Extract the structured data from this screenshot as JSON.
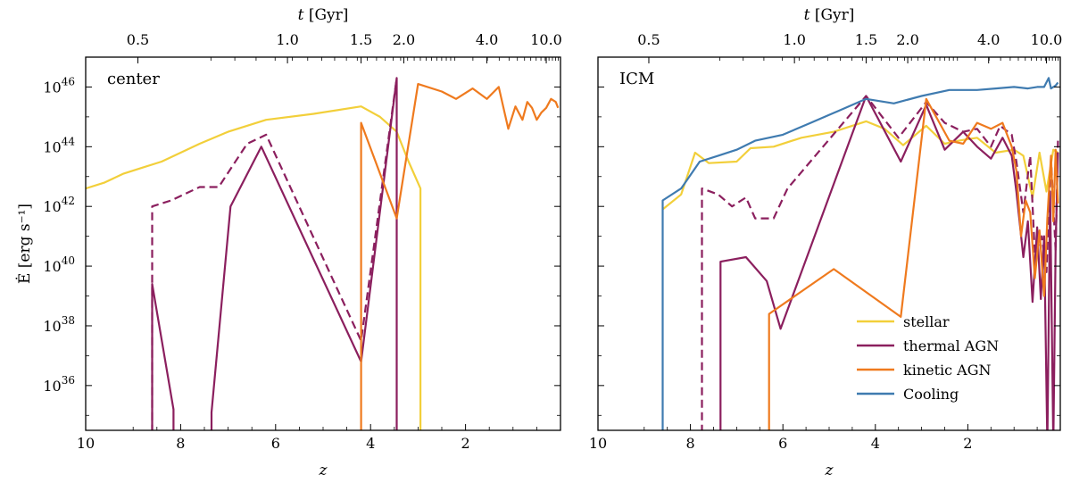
{
  "chart_data": {
    "type": "line",
    "x_axis": {
      "label": "z",
      "ticks": [
        10,
        8,
        6,
        4,
        2
      ],
      "range": [
        10,
        0
      ]
    },
    "top_axis": {
      "label_italic": "t",
      "label_unit": "[Gyr]",
      "ticks": [
        "0.5",
        "1.0",
        "1.5",
        "2.0",
        "4.0",
        "10.0"
      ],
      "tick_z": [
        8.9,
        5.75,
        4.2,
        3.3,
        1.55,
        0.3
      ]
    },
    "y_axis": {
      "label": "Ė [erg s⁻¹]",
      "scale": "log",
      "range_log10": [
        34.5,
        47.0
      ],
      "ticks": [
        {
          "base": "10",
          "exp": "46",
          "log": 46
        },
        {
          "base": "10",
          "exp": "44",
          "log": 44
        },
        {
          "base": "10",
          "exp": "42",
          "log": 42
        },
        {
          "base": "10",
          "exp": "40",
          "log": 40
        },
        {
          "base": "10",
          "exp": "38",
          "log": 38
        },
        {
          "base": "10",
          "exp": "36",
          "log": 36
        }
      ]
    },
    "colors": {
      "stellar": "#f2cf3a",
      "thermal": "#8b1f5e",
      "kinetic": "#ef7a1e",
      "cooling": "#3f7bb0"
    },
    "legend": [
      {
        "key": "stellar",
        "label": "stellar"
      },
      {
        "key": "thermal",
        "label": "thermal AGN"
      },
      {
        "key": "kinetic",
        "label": "kinetic AGN"
      },
      {
        "key": "cooling",
        "label": "Cooling"
      }
    ],
    "panels": [
      {
        "label": "center",
        "series": [
          {
            "key": "stellar",
            "dash": false,
            "points": [
              [
                10,
                42.6
              ],
              [
                9.6,
                42.8
              ],
              [
                9.2,
                43.1
              ],
              [
                8.8,
                43.3
              ],
              [
                8.4,
                43.5
              ],
              [
                8,
                43.8
              ],
              [
                7.6,
                44.1
              ],
              [
                7.0,
                44.5
              ],
              [
                6.2,
                44.9
              ],
              [
                5.2,
                45.1
              ],
              [
                4.2,
                45.35
              ],
              [
                3.8,
                45.0
              ],
              [
                3.45,
                44.5
              ],
              [
                3.2,
                43.5
              ],
              [
                2.95,
                42.6
              ],
              [
                2.95,
                34.0
              ]
            ]
          },
          {
            "key": "thermal",
            "dash": true,
            "points": [
              [
                8.6,
                34.0
              ],
              [
                8.6,
                39.4
              ],
              [
                8.6,
                42.0
              ],
              [
                8.2,
                42.2
              ],
              [
                7.6,
                42.65
              ],
              [
                7.2,
                42.65
              ],
              [
                6.6,
                44.1
              ],
              [
                6.2,
                44.4
              ],
              [
                4.2,
                37.5
              ],
              [
                3.45,
                46.3
              ]
            ]
          },
          {
            "key": "thermal",
            "dash": false,
            "points": [
              [
                8.6,
                34.0
              ],
              [
                8.6,
                39.4
              ],
              [
                8.15,
                35.2
              ],
              [
                8.15,
                34.0
              ]
            ]
          },
          {
            "key": "thermal",
            "dash": false,
            "points": [
              [
                7.35,
                34.0
              ],
              [
                7.35,
                35.1
              ],
              [
                6.95,
                42.0
              ],
              [
                6.3,
                44.0
              ],
              [
                4.2,
                36.8
              ],
              [
                3.45,
                46.3
              ],
              [
                3.45,
                34.0
              ]
            ]
          },
          {
            "key": "kinetic",
            "dash": false,
            "points": [
              [
                4.2,
                34.0
              ],
              [
                4.2,
                44.8
              ],
              [
                3.45,
                41.6
              ],
              [
                3.0,
                46.1
              ],
              [
                2.5,
                45.85
              ],
              [
                2.2,
                45.6
              ],
              [
                1.85,
                45.95
              ],
              [
                1.55,
                45.6
              ],
              [
                1.3,
                46.0
              ],
              [
                1.1,
                44.6
              ],
              [
                0.95,
                45.35
              ],
              [
                0.8,
                44.9
              ],
              [
                0.7,
                45.5
              ],
              [
                0.6,
                45.3
              ],
              [
                0.5,
                44.9
              ],
              [
                0.4,
                45.15
              ],
              [
                0.3,
                45.3
              ],
              [
                0.2,
                45.6
              ],
              [
                0.1,
                45.5
              ],
              [
                0.05,
                45.3
              ]
            ]
          }
        ]
      },
      {
        "label": "ICM",
        "show_legend": true,
        "series": [
          {
            "key": "stellar",
            "dash": false,
            "points": [
              [
                8.6,
                41.9
              ],
              [
                8.2,
                42.4
              ],
              [
                7.9,
                43.8
              ],
              [
                7.6,
                43.45
              ],
              [
                7.0,
                43.5
              ],
              [
                6.7,
                43.95
              ],
              [
                6.2,
                44.0
              ],
              [
                5.6,
                44.3
              ],
              [
                4.9,
                44.5
              ],
              [
                4.2,
                44.85
              ],
              [
                3.8,
                44.6
              ],
              [
                3.4,
                44.05
              ],
              [
                2.9,
                44.7
              ],
              [
                2.5,
                44.1
              ],
              [
                2.2,
                44.2
              ],
              [
                1.8,
                44.3
              ],
              [
                1.4,
                43.8
              ],
              [
                1.0,
                43.9
              ],
              [
                0.8,
                43.7
              ],
              [
                0.6,
                42.3
              ],
              [
                0.45,
                43.8
              ],
              [
                0.3,
                42.5
              ],
              [
                0.15,
                43.9
              ],
              [
                0.05,
                43.8
              ]
            ]
          },
          {
            "key": "thermal",
            "dash": true,
            "points": [
              [
                7.75,
                34.0
              ],
              [
                7.75,
                42.6
              ],
              [
                7.4,
                42.4
              ],
              [
                7.1,
                42.0
              ],
              [
                6.8,
                42.3
              ],
              [
                6.6,
                41.6
              ],
              [
                6.2,
                41.6
              ],
              [
                5.9,
                42.6
              ],
              [
                4.2,
                45.7
              ],
              [
                3.5,
                44.3
              ],
              [
                2.9,
                45.5
              ],
              [
                2.5,
                44.8
              ],
              [
                2.1,
                44.5
              ],
              [
                1.8,
                44.6
              ],
              [
                1.5,
                44.0
              ],
              [
                1.3,
                44.7
              ],
              [
                1.05,
                44.4
              ],
              [
                0.95,
                43.5
              ],
              [
                0.8,
                41.8
              ],
              [
                0.65,
                43.7
              ],
              [
                0.55,
                40.4
              ],
              [
                0.4,
                41.0
              ],
              [
                0.3,
                39.8
              ],
              [
                0.2,
                43.6
              ],
              [
                0.1,
                40.5
              ],
              [
                0.05,
                44.2
              ]
            ]
          },
          {
            "key": "thermal",
            "dash": false,
            "points": [
              [
                7.35,
                34.0
              ],
              [
                7.35,
                40.15
              ],
              [
                6.8,
                40.3
              ],
              [
                6.35,
                39.5
              ],
              [
                6.05,
                37.9
              ],
              [
                4.2,
                45.7
              ],
              [
                3.45,
                43.5
              ],
              [
                2.9,
                45.4
              ],
              [
                2.5,
                43.9
              ],
              [
                2.1,
                44.5
              ],
              [
                1.8,
                44.0
              ],
              [
                1.5,
                43.6
              ],
              [
                1.25,
                44.3
              ],
              [
                1.05,
                43.7
              ],
              [
                0.95,
                42.5
              ],
              [
                0.8,
                40.3
              ],
              [
                0.7,
                41.5
              ],
              [
                0.6,
                38.8
              ],
              [
                0.5,
                41.3
              ],
              [
                0.42,
                38.9
              ],
              [
                0.35,
                41.0
              ],
              [
                0.28,
                34.0
              ],
              [
                0.22,
                42.5
              ],
              [
                0.15,
                34.0
              ],
              [
                0.1,
                40.7
              ],
              [
                0.05,
                43.8
              ]
            ]
          },
          {
            "key": "kinetic",
            "dash": false,
            "points": [
              [
                6.3,
                34.0
              ],
              [
                6.3,
                38.4
              ],
              [
                4.9,
                39.9
              ],
              [
                3.45,
                38.3
              ],
              [
                2.9,
                45.6
              ],
              [
                2.4,
                44.2
              ],
              [
                2.1,
                44.1
              ],
              [
                1.8,
                44.8
              ],
              [
                1.5,
                44.6
              ],
              [
                1.25,
                44.8
              ],
              [
                1.05,
                44.0
              ],
              [
                0.95,
                43.2
              ],
              [
                0.85,
                41.0
              ],
              [
                0.75,
                42.2
              ],
              [
                0.65,
                41.8
              ],
              [
                0.55,
                39.6
              ],
              [
                0.45,
                41.2
              ],
              [
                0.35,
                39.0
              ],
              [
                0.28,
                41.6
              ],
              [
                0.2,
                43.7
              ],
              [
                0.15,
                41.5
              ],
              [
                0.1,
                43.9
              ],
              [
                0.05,
                42.1
              ]
            ]
          },
          {
            "key": "cooling",
            "dash": false,
            "points": [
              [
                8.6,
                34.0
              ],
              [
                8.6,
                42.2
              ],
              [
                8.2,
                42.6
              ],
              [
                7.8,
                43.5
              ],
              [
                7.4,
                43.7
              ],
              [
                7.0,
                43.9
              ],
              [
                6.6,
                44.2
              ],
              [
                6.0,
                44.4
              ],
              [
                5.4,
                44.8
              ],
              [
                4.8,
                45.2
              ],
              [
                4.2,
                45.6
              ],
              [
                3.6,
                45.45
              ],
              [
                3.0,
                45.7
              ],
              [
                2.4,
                45.9
              ],
              [
                1.8,
                45.9
              ],
              [
                1.4,
                45.95
              ],
              [
                1.0,
                46.0
              ],
              [
                0.7,
                45.95
              ],
              [
                0.5,
                46.0
              ],
              [
                0.35,
                46.0
              ],
              [
                0.25,
                46.3
              ],
              [
                0.2,
                45.95
              ],
              [
                0.1,
                46.05
              ],
              [
                0.05,
                46.15
              ]
            ]
          }
        ]
      }
    ]
  }
}
